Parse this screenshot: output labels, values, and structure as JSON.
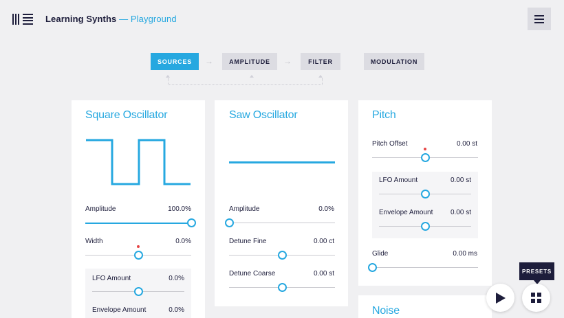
{
  "header": {
    "title": "Learning Synths",
    "separator": " — ",
    "subtitle": "Playground",
    "logo_icon": "ableton-logo-icon",
    "menu_icon": "hamburger-menu-icon"
  },
  "tabs": [
    {
      "label": "SOURCES",
      "active": true
    },
    {
      "label": "AMPLITUDE",
      "active": false
    },
    {
      "label": "FILTER",
      "active": false
    },
    {
      "label": "MODULATION",
      "active": false
    }
  ],
  "colors": {
    "accent": "#26a8e0",
    "dark": "#1d1d3b",
    "background": "#f0f0f2",
    "panel": "#ffffff",
    "marker": "#e64545"
  },
  "square": {
    "title": "Square Oscillator",
    "amplitude": {
      "label": "Amplitude",
      "value": "100.0%",
      "level": 1.0
    },
    "width": {
      "label": "Width",
      "value": "0.0%",
      "level": 0.5
    },
    "lfo": {
      "label": "LFO Amount",
      "value": "0.0%",
      "level": 0.5
    },
    "envelope": {
      "label": "Envelope Amount",
      "value": "0.0%"
    }
  },
  "saw": {
    "title": "Saw Oscillator",
    "amplitude": {
      "label": "Amplitude",
      "value": "0.0%",
      "level": 0.0
    },
    "detune_fine": {
      "label": "Detune Fine",
      "value": "0.00 ct",
      "level": 0.5
    },
    "detune_coarse": {
      "label": "Detune Coarse",
      "value": "0.00 st",
      "level": 0.5
    }
  },
  "pitch": {
    "title": "Pitch",
    "offset": {
      "label": "Pitch Offset",
      "value": "0.00 st",
      "level": 0.5
    },
    "lfo": {
      "label": "LFO Amount",
      "value": "0.00 st",
      "level": 0.5
    },
    "envelope": {
      "label": "Envelope Amount",
      "value": "0.00 st",
      "level": 0.5
    },
    "glide": {
      "label": "Glide",
      "value": "0.00 ms",
      "level": 0.0
    }
  },
  "noise": {
    "title": "Noise"
  },
  "controls": {
    "presets_label": "PRESETS",
    "play_icon": "play-icon",
    "presets_icon": "grid-icon"
  }
}
